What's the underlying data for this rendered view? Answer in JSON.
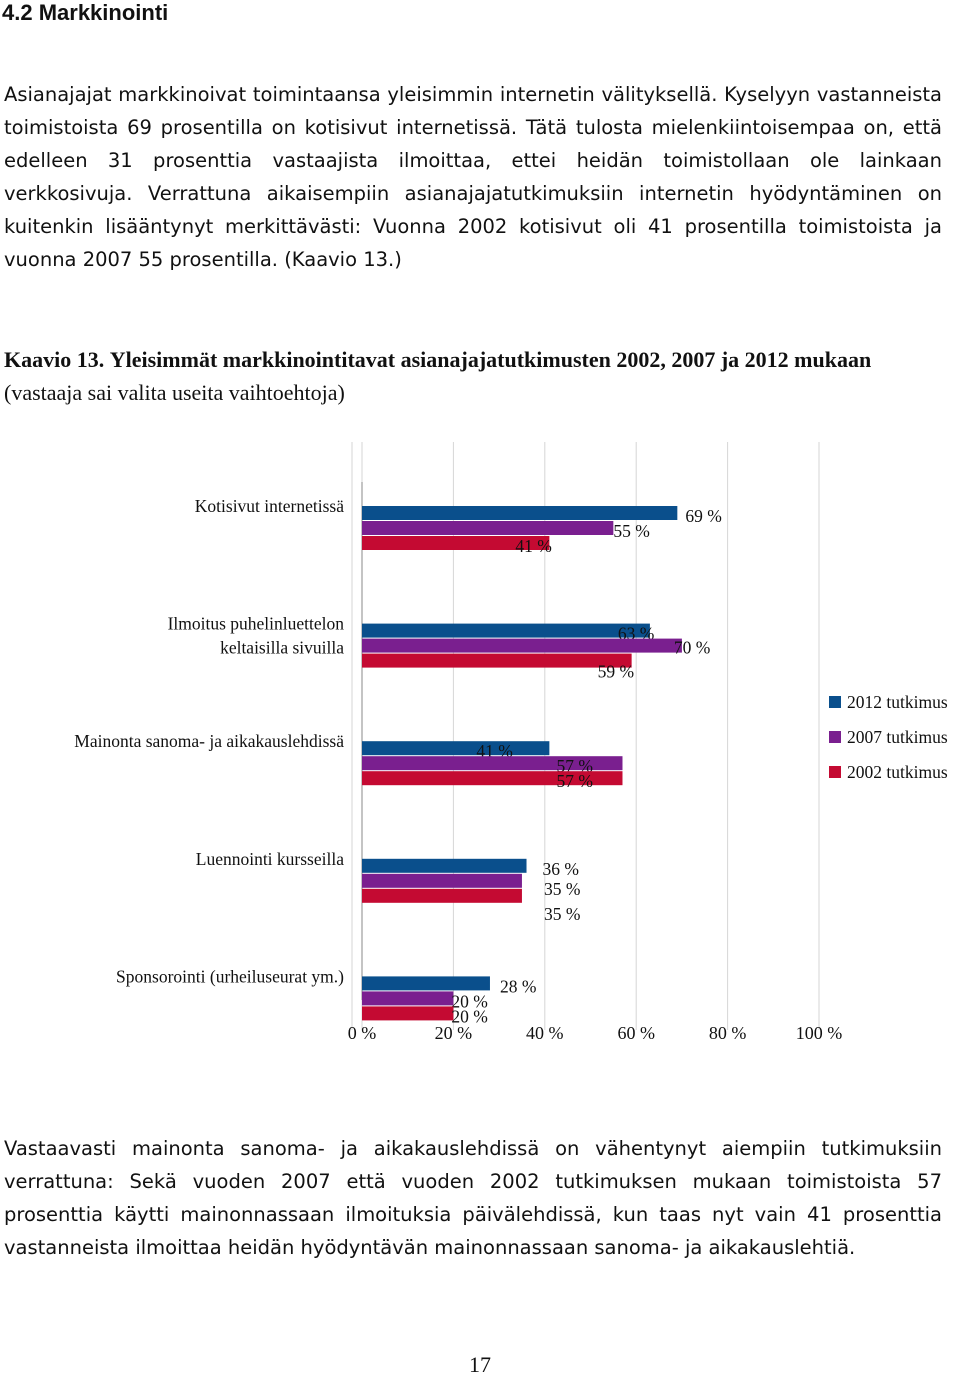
{
  "section_heading": "4.2 Markkinointi",
  "paragraph_1": "Asianajajat markkinoivat toimintaansa yleisimmin internetin välityksellä. Kyselyyn vastanneista toimistoista 69 prosentilla on kotisivut internetissä. Tätä tulosta mielenkiintoisempaa on, että edelleen 31 prosenttia vastaajista ilmoittaa, ettei heidän toimistollaan ole lainkaan verkkosivuja. Verrattuna aikaisempiin asianajajatutkimuksiin internetin hyödyntäminen on kuitenkin lisääntynyt merkittävästi: Vuonna 2002 kotisivut oli 41 prosentilla toimistoista ja vuonna 2007 55 prosentilla. (Kaavio 13.)",
  "figure_caption": {
    "label": "Kaavio 13.",
    "title": "Yleisimmät markkinointitavat asianajajatutkimusten 2002, 2007 ja 2012 mukaan",
    "note": "(vastaaja sai valita useita vaihtoehtoja)"
  },
  "chart_data": {
    "type": "bar",
    "orientation": "horizontal",
    "categories": [
      "Kotisivut internetissä",
      "Ilmoitus puhelinluettelon keltaisilla sivuilla",
      "Mainonta sanoma- ja aikakauslehdissä",
      "Luennointi kursseilla",
      "Sponsorointi (urheiluseurat ym.)"
    ],
    "series": [
      {
        "name": "2012 tutkimus",
        "color": "#0a4f8c",
        "values": [
          69,
          63,
          41,
          36,
          28
        ]
      },
      {
        "name": "2007 tutkimus",
        "color": "#7a1f8f",
        "values": [
          55,
          70,
          57,
          35,
          20
        ]
      },
      {
        "name": "2002 tutkimus",
        "color": "#c40a32",
        "values": [
          41,
          59,
          57,
          35,
          20
        ]
      }
    ],
    "x_ticks": [
      "0 %",
      "20 %",
      "40 %",
      "60 %",
      "80 %",
      "100 %"
    ],
    "xlim": [
      0,
      100
    ],
    "value_suffix": " %",
    "legend_position": "right",
    "grid": true
  },
  "paragraph_2": "Vastaavasti mainonta sanoma- ja aikakauslehdissä on vähentynyt aiempiin tutkimuksiin verrattuna: Sekä vuoden 2007 että vuoden 2002 tutkimuksen mukaan toimistoista 57 prosenttia käytti mainonnassaan ilmoituksia päivälehdissä, kun taas nyt vain 41 prosenttia vastanneista ilmoittaa heidän hyödyntävän mainonnassaan sanoma- ja aikakauslehtiä.",
  "page_number": "17"
}
